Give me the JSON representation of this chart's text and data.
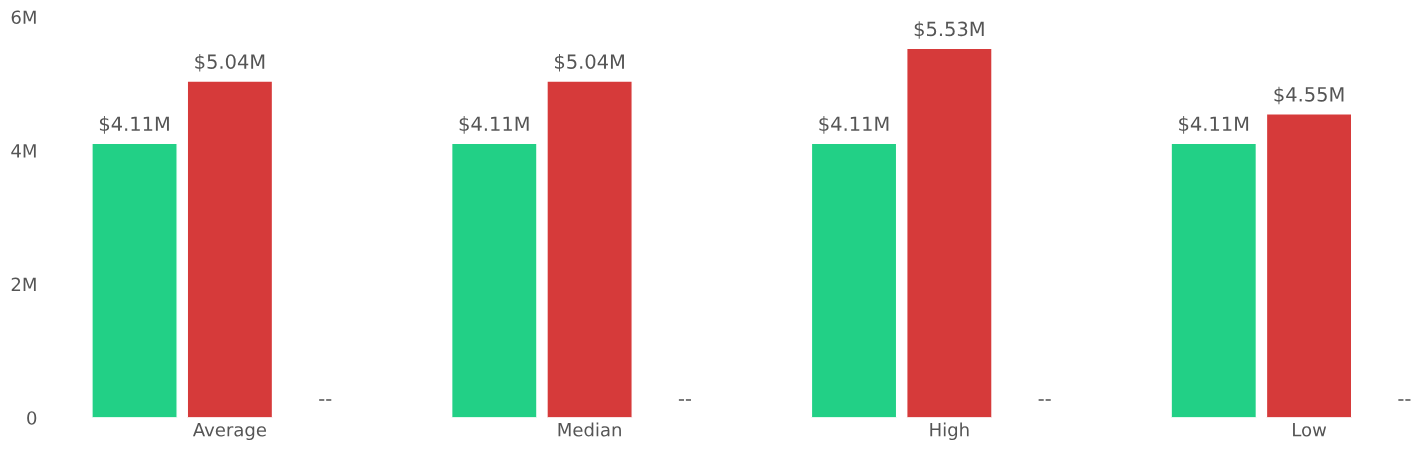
{
  "chart_data": {
    "type": "bar",
    "categories": [
      "Average",
      "Median",
      "High",
      "Low"
    ],
    "series": [
      {
        "color": "#22d086",
        "values": [
          4110000,
          4110000,
          4110000,
          4110000
        ],
        "value_labels": [
          "$4.11M",
          "$4.11M",
          "$4.11M",
          "$4.11M"
        ]
      },
      {
        "color": "#d63a3a",
        "values": [
          5040000,
          5040000,
          5530000,
          4550000
        ],
        "value_labels": [
          "$5.04M",
          "$5.04M",
          "$5.53M",
          "$4.55M"
        ]
      },
      {
        "color": "#4a90d9",
        "values": [
          null,
          null,
          null,
          null
        ],
        "value_labels": [
          "--",
          "--",
          "--",
          "--"
        ]
      }
    ],
    "ylim": [
      0,
      6000000
    ],
    "yticks": [
      {
        "value": 0,
        "label": "0"
      },
      {
        "value": 2000000,
        "label": "2M"
      },
      {
        "value": 4000000,
        "label": "4M"
      },
      {
        "value": 6000000,
        "label": "6M"
      }
    ],
    "grid": false,
    "legend": false
  }
}
